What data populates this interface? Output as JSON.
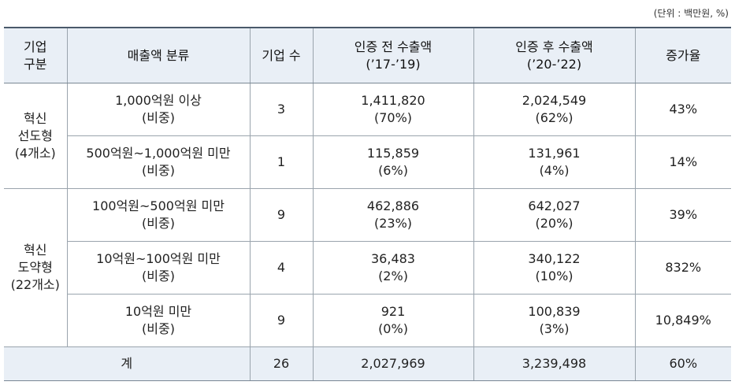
{
  "unit_note": "(단위 : 백만원, %)",
  "headers": {
    "group": [
      "기업",
      "구분"
    ],
    "category": "매출액 분류",
    "count": "기업 수",
    "before": [
      "인증 전 수출액",
      "(’17-’19)"
    ],
    "after": [
      "인증 후 수출액",
      "(’20-’22)"
    ],
    "growth": "증가율"
  },
  "groups": [
    {
      "label": [
        "혁신",
        "선도형",
        "(4개소)"
      ]
    },
    {
      "label": [
        "혁신",
        "도약형",
        "(22개소)"
      ]
    }
  ],
  "rows": [
    {
      "category": [
        "1,000억원 이상",
        "(비중)"
      ],
      "count": "3",
      "before": [
        "1,411,820",
        "(70%)"
      ],
      "after": [
        "2,024,549",
        "(62%)"
      ],
      "growth": "43%"
    },
    {
      "category": [
        "500억원~1,000억원 미만",
        "(비중)"
      ],
      "count": "1",
      "before": [
        "115,859",
        "(6%)"
      ],
      "after": [
        "131,961",
        "(4%)"
      ],
      "growth": "14%"
    },
    {
      "category": [
        "100억원~500억원 미만",
        "(비중)"
      ],
      "count": "9",
      "before": [
        "462,886",
        "(23%)"
      ],
      "after": [
        "642,027",
        "(20%)"
      ],
      "growth": "39%"
    },
    {
      "category": [
        "10억원~100억원 미만",
        "(비중)"
      ],
      "count": "4",
      "before": [
        "36,483",
        "(2%)"
      ],
      "after": [
        "340,122",
        "(10%)"
      ],
      "growth": "832%"
    },
    {
      "category": [
        "10억원 미만",
        "(비중)"
      ],
      "count": "9",
      "before": [
        "921",
        "(0%)"
      ],
      "after": [
        "100,839",
        "(3%)"
      ],
      "growth": "10,849%"
    }
  ],
  "total": {
    "label": "계",
    "count": "26",
    "before": "2,027,969",
    "after": "3,239,498",
    "growth": "60%"
  }
}
